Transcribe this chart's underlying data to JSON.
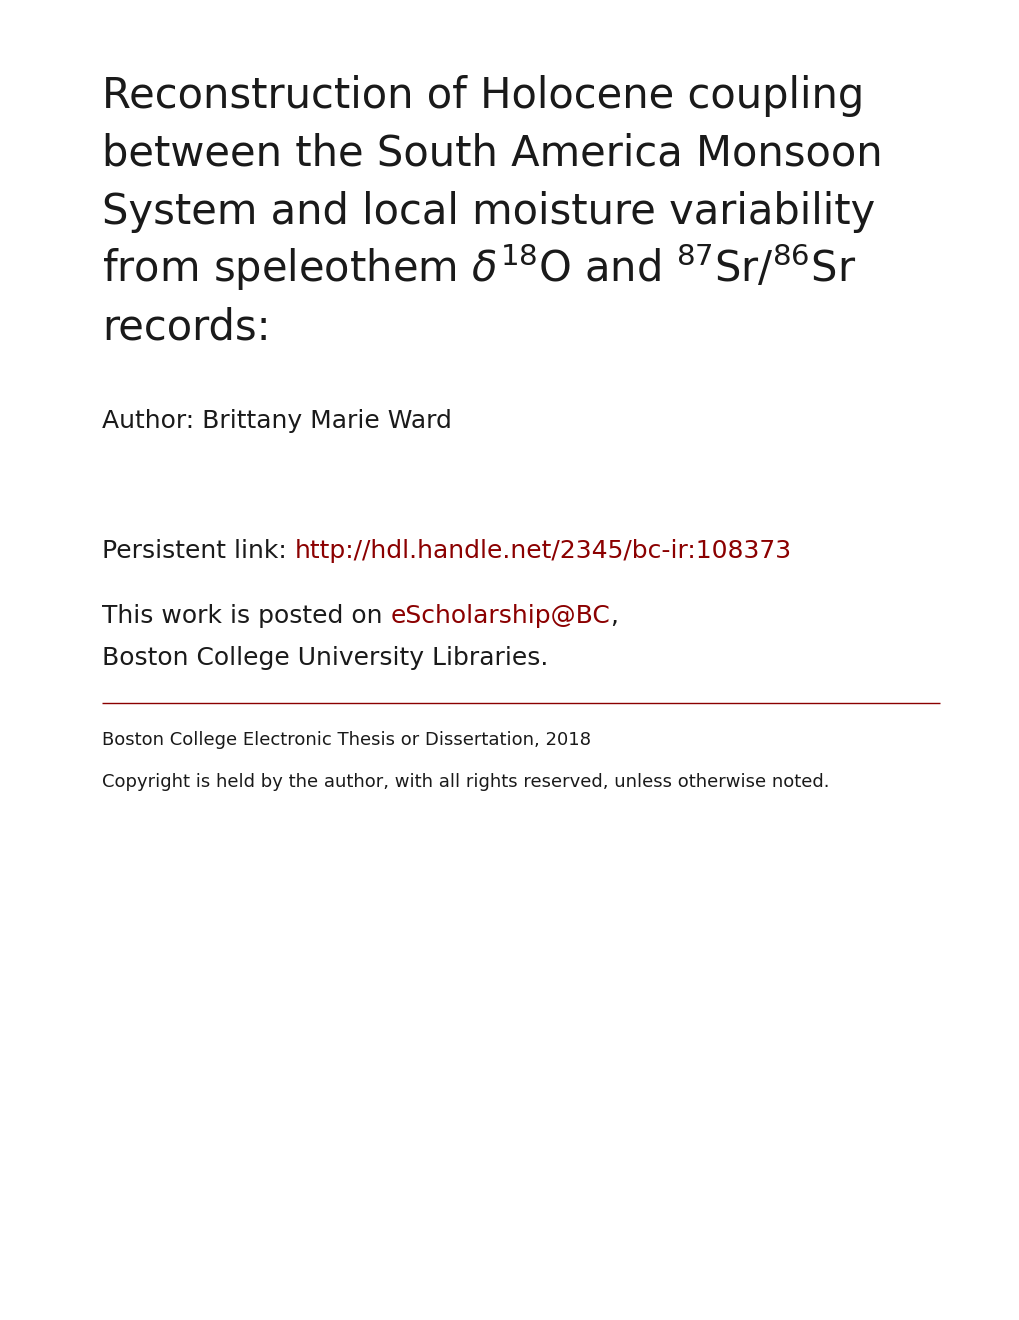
{
  "bg_color": "#ffffff",
  "dark_color": "#1a1a1a",
  "red_color": "#8b0000",
  "divider_color": "#8b0000",
  "title_texts": [
    "Reconstruction of Holocene coupling",
    "between the South America Monsoon",
    "System and local moisture variability",
    "records:"
  ],
  "title_line4_plain": "from speleothem ",
  "title_line4_delta": "δ",
  "title_line4_super1": "18",
  "title_line4_o": "O and ",
  "title_line4_super2": "87",
  "title_line4_sr1": "Sr/",
  "title_line4_super3": "86",
  "title_line4_sr2": "Sr",
  "author_label": "Author: Brittany Marie Ward",
  "persistent_prefix": "Persistent link: ",
  "persistent_url": "http://hdl.handle.net/2345/bc-ir:108373",
  "posted_prefix": "This work is posted on ",
  "posted_link": "eScholarship@BC",
  "posted_suffix": ",",
  "posted_line2": "Boston College University Libraries.",
  "footer_line1": "Boston College Electronic Thesis or Dissertation, 2018",
  "footer_line2": "Copyright is held by the author, with all rights reserved, unless otherwise noted.",
  "title_fontsize": 30,
  "author_fontsize": 18,
  "body_fontsize": 18,
  "footer_fontsize": 13,
  "fig_width": 10.2,
  "fig_height": 13.2,
  "dpi": 100
}
